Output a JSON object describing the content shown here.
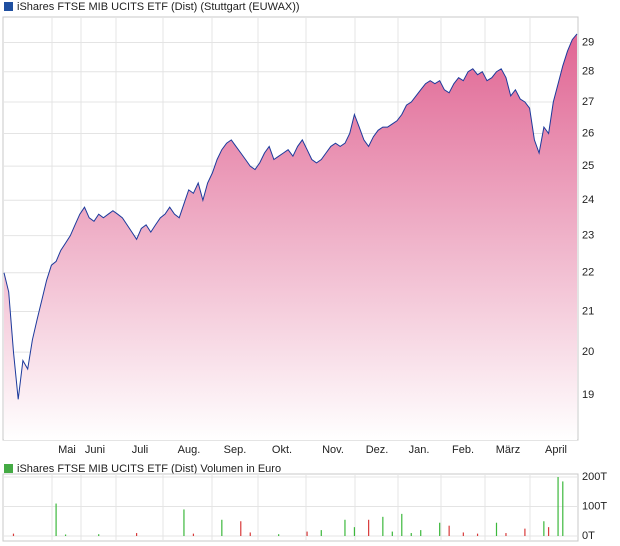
{
  "chart_data": [
    {
      "type": "area",
      "title": "iShares FTSE MIB UCITS ETF (Dist) (Stuttgart (EUWAX))",
      "log_scale": true,
      "grid": true,
      "line_color": "#1c3a9c",
      "fill_color": "#e06593",
      "legend_color": "#1f4fa0",
      "ylim": [
        18,
        29.9
      ],
      "yticks": [
        19,
        20,
        21,
        22,
        23,
        24,
        25,
        26,
        27,
        28,
        29
      ],
      "x_labels": [
        "Mai",
        "Juni",
        "Juli",
        "Aug.",
        "Sep.",
        "Okt.",
        "Nov.",
        "Dez.",
        "Jan.",
        "Feb.",
        "März",
        "April"
      ],
      "values": [
        22.0,
        21.5,
        20.0,
        18.9,
        19.8,
        19.6,
        20.3,
        20.8,
        21.3,
        21.8,
        22.2,
        22.3,
        22.6,
        22.8,
        23.0,
        23.3,
        23.6,
        23.8,
        23.5,
        23.4,
        23.6,
        23.5,
        23.6,
        23.7,
        23.6,
        23.5,
        23.3,
        23.1,
        22.9,
        23.2,
        23.3,
        23.1,
        23.3,
        23.5,
        23.6,
        23.8,
        23.6,
        23.5,
        23.9,
        24.3,
        24.2,
        24.5,
        24.0,
        24.5,
        24.8,
        25.2,
        25.5,
        25.7,
        25.8,
        25.6,
        25.4,
        25.2,
        25.0,
        24.9,
        25.1,
        25.4,
        25.6,
        25.2,
        25.3,
        25.4,
        25.5,
        25.3,
        25.6,
        25.8,
        25.5,
        25.2,
        25.1,
        25.2,
        25.4,
        25.6,
        25.7,
        25.6,
        25.7,
        26.0,
        26.6,
        26.2,
        25.8,
        25.6,
        25.9,
        26.1,
        26.2,
        26.2,
        26.3,
        26.4,
        26.6,
        26.9,
        27.0,
        27.2,
        27.4,
        27.6,
        27.7,
        27.6,
        27.7,
        27.4,
        27.3,
        27.6,
        27.8,
        27.7,
        28.0,
        28.1,
        27.9,
        28.0,
        27.7,
        27.8,
        28.0,
        28.1,
        27.8,
        27.2,
        27.4,
        27.1,
        27.0,
        26.8,
        25.8,
        25.4,
        26.2,
        26.0,
        27.0,
        27.6,
        28.2,
        28.7,
        29.1,
        29.3
      ]
    },
    {
      "type": "bar",
      "title": "iShares FTSE MIB UCITS ETF (Dist) Volumen in Euro",
      "up_color": "#3cb83c",
      "down_color": "#d83a3a",
      "legend_color": "#44aa44",
      "grid": true,
      "ylim": [
        0,
        200000
      ],
      "yticks": [
        {
          "value": 0,
          "label": "0T"
        },
        {
          "value": 100000,
          "label": "100T"
        },
        {
          "value": 200000,
          "label": "200T"
        }
      ],
      "values": [
        0,
        0,
        8000,
        0,
        0,
        0,
        0,
        0,
        0,
        0,
        0,
        110000,
        0,
        5000,
        0,
        0,
        0,
        0,
        0,
        0,
        6000,
        0,
        0,
        0,
        0,
        0,
        0,
        0,
        10000,
        0,
        0,
        0,
        0,
        0,
        0,
        0,
        0,
        0,
        90000,
        0,
        8000,
        0,
        0,
        0,
        0,
        0,
        55000,
        0,
        0,
        0,
        50000,
        0,
        12000,
        0,
        0,
        0,
        0,
        0,
        6000,
        0,
        0,
        0,
        0,
        0,
        15000,
        0,
        0,
        20000,
        0,
        0,
        0,
        0,
        55000,
        0,
        30000,
        0,
        0,
        55000,
        0,
        0,
        65000,
        0,
        15000,
        0,
        75000,
        0,
        10000,
        0,
        20000,
        0,
        0,
        0,
        45000,
        0,
        35000,
        0,
        0,
        12000,
        0,
        0,
        8000,
        0,
        0,
        0,
        45000,
        0,
        10000,
        0,
        0,
        0,
        25000,
        0,
        0,
        0,
        50000,
        30000,
        0,
        200000,
        185000
      ]
    }
  ]
}
